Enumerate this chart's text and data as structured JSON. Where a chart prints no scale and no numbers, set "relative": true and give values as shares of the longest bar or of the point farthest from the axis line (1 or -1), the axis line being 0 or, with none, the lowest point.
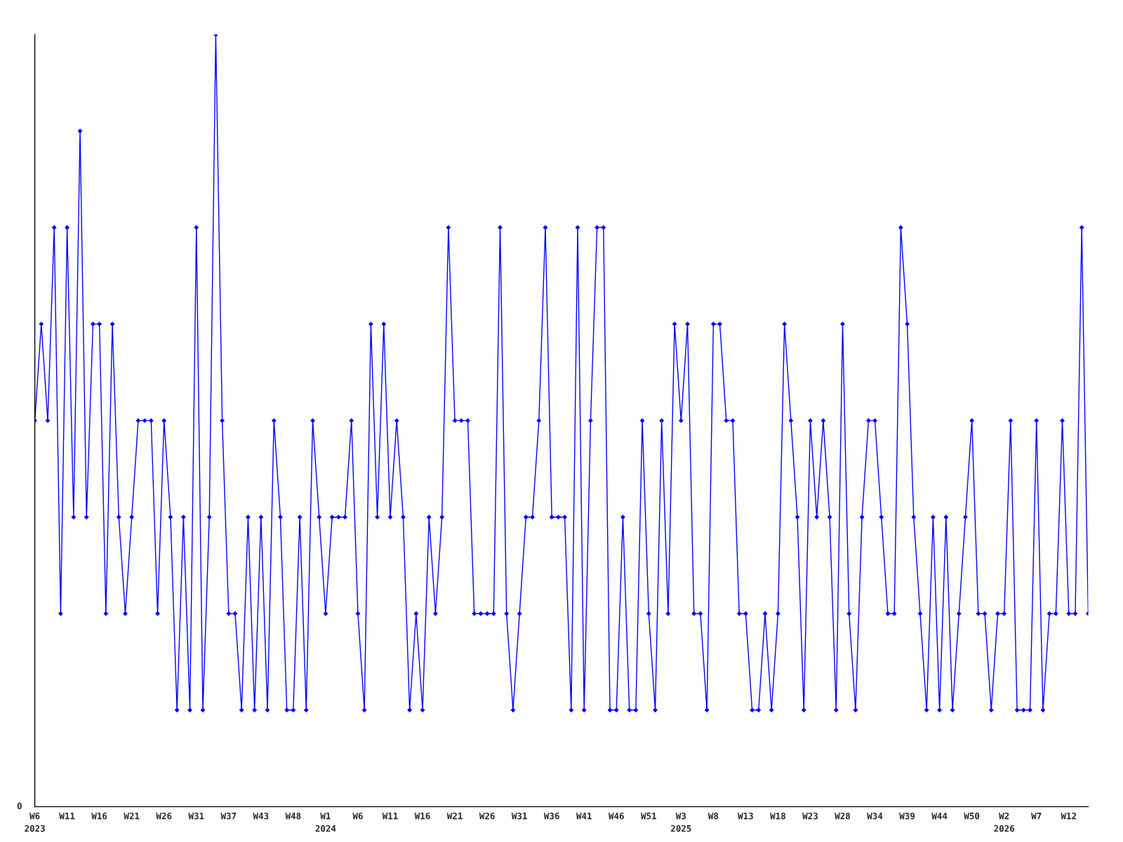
{
  "chart_data": {
    "type": "line",
    "relative": true,
    "marker": "diamond",
    "line_style": "solid",
    "grid": false,
    "annotations": [
      "0"
    ],
    "categories": [
      "W6\n2023",
      null,
      null,
      null,
      null,
      "W11",
      null,
      null,
      null,
      null,
      "W16",
      null,
      null,
      null,
      null,
      "W21",
      null,
      null,
      null,
      null,
      "W26",
      null,
      null,
      null,
      null,
      "W31",
      null,
      null,
      null,
      null,
      "W37",
      null,
      null,
      null,
      null,
      "W43",
      null,
      null,
      null,
      null,
      "W48",
      null,
      null,
      null,
      null,
      "W1\n2024",
      null,
      null,
      null,
      null,
      "W6",
      null,
      null,
      null,
      null,
      "W11",
      null,
      null,
      null,
      null,
      "W16",
      null,
      null,
      null,
      null,
      "W21",
      null,
      null,
      null,
      null,
      "W26",
      null,
      null,
      null,
      null,
      "W31",
      null,
      null,
      null,
      null,
      "W36",
      null,
      null,
      null,
      null,
      "W41",
      null,
      null,
      null,
      null,
      "W46",
      null,
      null,
      null,
      null,
      "W51",
      null,
      null,
      null,
      null,
      "W3\n2025",
      null,
      null,
      null,
      null,
      "W8",
      null,
      null,
      null,
      null,
      "W13",
      null,
      null,
      null,
      null,
      "W18",
      null,
      null,
      null,
      null,
      "W23",
      null,
      null,
      null,
      null,
      "W28",
      null,
      null,
      null,
      null,
      "W34",
      null,
      null,
      null,
      null,
      "W39",
      null,
      null,
      null,
      null,
      "W44",
      null,
      null,
      null,
      null,
      "W50",
      null,
      null,
      null,
      null,
      "W2\n2026",
      null,
      null,
      null,
      null,
      "W7",
      null,
      null,
      null,
      null,
      "W12",
      null,
      null,
      null
    ],
    "series": [
      {
        "color": "#0000ff",
        "values": [
          0.5,
          0.625,
          0.5,
          0.75,
          0.25,
          0.75,
          0.375,
          0.875,
          0.375,
          0.625,
          0.625,
          0.25,
          0.625,
          0.375,
          0.25,
          0.375,
          0.5,
          0.5,
          0.5,
          0.25,
          0.5,
          0.375,
          0.125,
          0.375,
          0.125,
          0.75,
          0.125,
          0.375,
          1,
          0.5,
          0.25,
          0.25,
          0.125,
          0.375,
          0.125,
          0.375,
          0.125,
          0.5,
          0.375,
          0.125,
          0.125,
          0.375,
          0.125,
          0.5,
          0.375,
          0.25,
          0.375,
          0.375,
          0.375,
          0.5,
          0.25,
          0.125,
          0.625,
          0.375,
          0.625,
          0.375,
          0.5,
          0.375,
          0.125,
          0.25,
          0.125,
          0.375,
          0.25,
          0.375,
          0.75,
          0.5,
          0.5,
          0.5,
          0.25,
          0.25,
          0.25,
          0.25,
          0.75,
          0.25,
          0.125,
          0.25,
          0.375,
          0.375,
          0.5,
          0.75,
          0.375,
          0.375,
          0.375,
          0.125,
          0.75,
          0.125,
          0.5,
          0.75,
          0.75,
          0.125,
          0.125,
          0.375,
          0.125,
          0.125,
          0.5,
          0.25,
          0.125,
          0.5,
          0.25,
          0.625,
          0.5,
          0.625,
          0.25,
          0.25,
          0.125,
          0.625,
          0.625,
          0.5,
          0.5,
          0.25,
          0.25,
          0.125,
          0.125,
          0.25,
          0.125,
          0.25,
          0.625,
          0.5,
          0.375,
          0.125,
          0.5,
          0.375,
          0.5,
          0.375,
          0.125,
          0.625,
          0.25,
          0.125,
          0.375,
          0.5,
          0.5,
          0.375,
          0.25,
          0.25,
          0.75,
          0.625,
          0.375,
          0.25,
          0.125,
          0.375,
          0.125,
          0.375,
          0.125,
          0.25,
          0.375,
          0.5,
          0.25,
          0.25,
          0.125,
          0.25,
          0.25,
          0.5,
          0.125,
          0.125,
          0.125,
          0.5,
          0.125,
          0.25,
          0.25,
          0.5,
          0.25,
          0.25,
          0.75,
          0.25
        ]
      }
    ]
  }
}
